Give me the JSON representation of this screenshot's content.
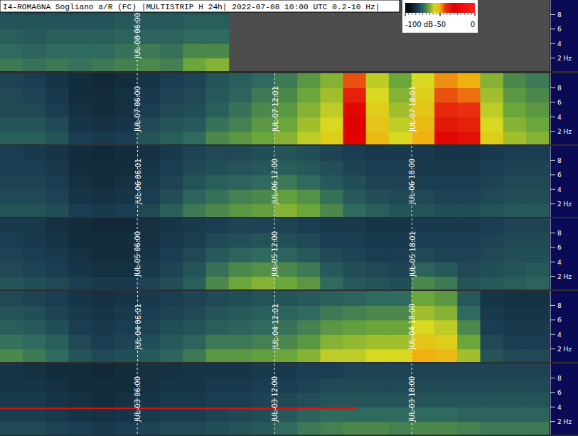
{
  "chart_data": {
    "type": "heatmap",
    "title": "I4-ROMAGNA Sogliano a/R (FC) |MULTISTRIP H 24h| 2022-07-08 10:00 UTC 0.2-10 Hz|",
    "xlim": [
      0,
      24
    ],
    "ylim": [
      0.2,
      10
    ],
    "yticks": [
      {
        "value": 2,
        "label": "2 Hz"
      },
      4,
      6,
      8
    ],
    "tick_labels": "y",
    "freq_bins": [
      0.2,
      2,
      4,
      6,
      8,
      10
    ],
    "hour_bins": [
      0,
      1,
      2,
      3,
      4,
      5,
      6,
      7,
      8,
      9,
      10,
      11,
      12,
      13,
      14,
      15,
      16,
      17,
      18,
      19,
      20,
      21,
      22,
      23,
      24
    ],
    "colorbar": {
      "range": [
        -100,
        0
      ],
      "ticks": [
        {
          "value": -100,
          "label": "-100 dB"
        },
        -50,
        0
      ]
    },
    "strips": [
      {
        "markers": [
          {
            "value": 6,
            "label": "JUL-08 06:00"
          }
        ],
        "cells": [
          [
            -72,
            -73,
            -72,
            -73,
            -72,
            -71,
            -70,
            -71,
            -66,
            -64,
            null,
            null,
            null,
            null,
            null,
            null,
            null,
            null,
            null,
            null,
            null,
            null,
            null,
            null
          ],
          [
            -74,
            -75,
            -74,
            -74,
            -74,
            -73,
            -72,
            -73,
            -70,
            -70,
            null,
            null,
            null,
            null,
            null,
            null,
            null,
            null,
            null,
            null,
            null,
            null,
            null,
            null
          ],
          [
            -76,
            -77,
            -76,
            -76,
            -76,
            -75,
            -75,
            -75,
            -74,
            -74,
            null,
            null,
            null,
            null,
            null,
            null,
            null,
            null,
            null,
            null,
            null,
            null,
            null,
            null
          ],
          [
            -78,
            -78,
            -78,
            -78,
            -78,
            -77,
            -77,
            -77,
            -76,
            -76,
            null,
            null,
            null,
            null,
            null,
            null,
            null,
            null,
            null,
            null,
            null,
            null,
            null,
            null
          ],
          [
            -79,
            -80,
            -79,
            -79,
            -79,
            -78,
            -78,
            -78,
            -78,
            -78,
            null,
            null,
            null,
            null,
            null,
            null,
            null,
            null,
            null,
            null,
            null,
            null,
            null,
            null
          ]
        ]
      },
      {
        "markers": [
          {
            "value": 6,
            "label": "JUL-07 06:00"
          },
          {
            "value": 12.017,
            "label": "JUL-07 12:01"
          },
          {
            "value": 18.017,
            "label": "JUL-07 18:01"
          }
        ],
        "cells": [
          [
            -76,
            -76,
            -78,
            -82,
            -83,
            -82,
            -78,
            -76,
            -74,
            -70,
            -68,
            -66,
            -64,
            -60,
            -56,
            -28,
            -52,
            -58,
            -50,
            -32,
            -34,
            -56,
            -62,
            -64
          ],
          [
            -78,
            -78,
            -80,
            -84,
            -85,
            -84,
            -80,
            -78,
            -77,
            -73,
            -71,
            -68,
            -66,
            -62,
            -58,
            -30,
            -54,
            -60,
            -52,
            -36,
            -38,
            -58,
            -64,
            -66
          ],
          [
            -80,
            -80,
            -82,
            -85,
            -86,
            -85,
            -82,
            -80,
            -79,
            -76,
            -73,
            -70,
            -68,
            -64,
            -60,
            -32,
            -56,
            -62,
            -54,
            -40,
            -42,
            -60,
            -66,
            -68
          ],
          [
            -80,
            -81,
            -83,
            -86,
            -86,
            -85,
            -83,
            -81,
            -80,
            -77,
            -75,
            -72,
            -70,
            -66,
            -62,
            -38,
            -58,
            -64,
            -56,
            -44,
            -46,
            -62,
            -68,
            -70
          ],
          [
            -81,
            -82,
            -84,
            -86,
            -87,
            -86,
            -84,
            -82,
            -81,
            -78,
            -76,
            -74,
            -72,
            -68,
            -64,
            -44,
            -60,
            -66,
            -58,
            -48,
            -50,
            -64,
            -70,
            -72
          ]
        ]
      },
      {
        "markers": [
          {
            "value": 6.017,
            "label": "JUL-06 06:01"
          },
          {
            "value": 12,
            "label": "JUL-06 12:00"
          },
          {
            "value": 18,
            "label": "JUL-06 18:00"
          }
        ],
        "cells": [
          [
            -78,
            -78,
            -79,
            -82,
            -83,
            -82,
            -80,
            -76,
            -72,
            -70,
            -68,
            -67,
            -64,
            -66,
            -70,
            -74,
            -76,
            -78,
            -78,
            -79,
            -79,
            -78,
            -77,
            -77
          ],
          [
            -80,
            -80,
            -81,
            -84,
            -85,
            -84,
            -82,
            -79,
            -75,
            -73,
            -71,
            -70,
            -67,
            -69,
            -73,
            -77,
            -79,
            -80,
            -80,
            -81,
            -81,
            -80,
            -79,
            -79
          ],
          [
            -81,
            -81,
            -82,
            -85,
            -86,
            -85,
            -83,
            -81,
            -78,
            -76,
            -75,
            -74,
            -72,
            -74,
            -77,
            -79,
            -81,
            -81,
            -82,
            -82,
            -82,
            -81,
            -80,
            -80
          ],
          [
            -82,
            -82,
            -83,
            -86,
            -86,
            -86,
            -84,
            -82,
            -80,
            -79,
            -78,
            -77,
            -76,
            -77,
            -79,
            -81,
            -82,
            -82,
            -83,
            -83,
            -83,
            -82,
            -81,
            -81
          ],
          [
            -82,
            -83,
            -84,
            -86,
            -87,
            -86,
            -85,
            -83,
            -81,
            -80,
            -80,
            -79,
            -78,
            -79,
            -81,
            -82,
            -83,
            -83,
            -83,
            -84,
            -84,
            -83,
            -82,
            -82
          ]
        ]
      },
      {
        "markers": [
          {
            "value": 6,
            "label": "JUL-05 06:00"
          },
          {
            "value": 12,
            "label": "JUL-05 12:00"
          },
          {
            "value": 18.017,
            "label": "JUL-05 18:01"
          }
        ],
        "cells": [
          [
            -78,
            -79,
            -80,
            -82,
            -83,
            -83,
            -81,
            -79,
            -76,
            -70,
            -66,
            -64,
            -66,
            -68,
            -74,
            -77,
            -78,
            -79,
            -70,
            -72,
            -78,
            -77,
            -76,
            -75
          ],
          [
            -80,
            -81,
            -82,
            -84,
            -85,
            -85,
            -83,
            -81,
            -78,
            -73,
            -70,
            -69,
            -70,
            -72,
            -77,
            -79,
            -80,
            -81,
            -75,
            -77,
            -80,
            -79,
            -78,
            -77
          ],
          [
            -81,
            -82,
            -83,
            -85,
            -86,
            -86,
            -84,
            -82,
            -80,
            -77,
            -75,
            -74,
            -75,
            -77,
            -80,
            -81,
            -82,
            -82,
            -80,
            -81,
            -81,
            -80,
            -79,
            -79
          ],
          [
            -82,
            -83,
            -84,
            -86,
            -86,
            -86,
            -85,
            -83,
            -82,
            -80,
            -79,
            -78,
            -79,
            -80,
            -82,
            -82,
            -83,
            -83,
            -82,
            -82,
            -82,
            -81,
            -80,
            -80
          ],
          [
            -83,
            -83,
            -85,
            -86,
            -87,
            -87,
            -85,
            -84,
            -83,
            -82,
            -81,
            -81,
            -81,
            -82,
            -83,
            -83,
            -84,
            -84,
            -83,
            -83,
            -83,
            -82,
            -81,
            -81
          ]
        ]
      },
      {
        "markers": [
          {
            "value": 6.017,
            "label": "JUL-04 06:01"
          },
          {
            "value": 12.017,
            "label": "JUL-04 12:01"
          },
          {
            "value": 18,
            "label": "JUL-04 18:00"
          }
        ],
        "cells": [
          [
            -70,
            -72,
            -74,
            -78,
            -80,
            -79,
            -77,
            -75,
            -72,
            -68,
            -68,
            -67,
            -66,
            -64,
            -60,
            -60,
            -58,
            -58,
            -50,
            -52,
            -62,
            -78,
            -80,
            -80
          ],
          [
            -73,
            -74,
            -76,
            -80,
            -82,
            -81,
            -79,
            -77,
            -75,
            -72,
            -72,
            -71,
            -70,
            -68,
            -64,
            -63,
            -62,
            -62,
            -54,
            -56,
            -66,
            -80,
            -82,
            -82
          ],
          [
            -76,
            -77,
            -79,
            -82,
            -83,
            -82,
            -81,
            -79,
            -78,
            -76,
            -75,
            -74,
            -73,
            -71,
            -68,
            -67,
            -66,
            -66,
            -58,
            -60,
            -70,
            -82,
            -83,
            -83
          ],
          [
            -78,
            -79,
            -81,
            -83,
            -84,
            -83,
            -82,
            -81,
            -80,
            -78,
            -77,
            -76,
            -75,
            -74,
            -72,
            -71,
            -70,
            -70,
            -62,
            -64,
            -74,
            -83,
            -84,
            -84
          ],
          [
            -80,
            -81,
            -82,
            -84,
            -85,
            -84,
            -83,
            -82,
            -81,
            -80,
            -79,
            -78,
            -78,
            -77,
            -76,
            -75,
            -74,
            -74,
            -66,
            -68,
            -77,
            -84,
            -85,
            -85
          ]
        ]
      },
      {
        "markers": [
          {
            "value": 6,
            "label": "JUL-03 06:00"
          },
          {
            "value": 12,
            "label": "JUL-03 12:00"
          },
          {
            "value": 18,
            "label": "JUL-03 18:00"
          }
        ],
        "narrowband": {
          "freq": 3.8,
          "from": 0,
          "to": 15.6,
          "color": "#e01010"
        },
        "cells": [
          [
            -80,
            -80,
            -81,
            -82,
            -83,
            -82,
            -81,
            -80,
            -80,
            -79,
            -78,
            -77,
            -74,
            -72,
            -71,
            -70,
            -70,
            -71,
            -70,
            -70,
            -71,
            -72,
            -72,
            -72
          ],
          [
            -82,
            -82,
            -83,
            -84,
            -85,
            -84,
            -83,
            -82,
            -82,
            -81,
            -80,
            -79,
            -77,
            -75,
            -74,
            -74,
            -74,
            -74,
            -74,
            -74,
            -75,
            -75,
            -75,
            -75
          ],
          [
            -83,
            -83,
            -84,
            -85,
            -86,
            -85,
            -84,
            -83,
            -83,
            -82,
            -82,
            -81,
            -80,
            -79,
            -78,
            -78,
            -78,
            -78,
            -78,
            -78,
            -78,
            -78,
            -78,
            -78
          ],
          [
            -84,
            -84,
            -85,
            -86,
            -86,
            -86,
            -85,
            -84,
            -84,
            -83,
            -83,
            -82,
            -82,
            -81,
            -80,
            -80,
            -80,
            -80,
            -80,
            -80,
            -80,
            -80,
            -80,
            -80
          ],
          [
            -84,
            -85,
            -86,
            -86,
            -87,
            -86,
            -85,
            -85,
            -84,
            -84,
            -84,
            -83,
            -83,
            -82,
            -82,
            -81,
            -81,
            -81,
            -81,
            -81,
            -81,
            -81,
            -81,
            -81
          ]
        ]
      }
    ]
  }
}
